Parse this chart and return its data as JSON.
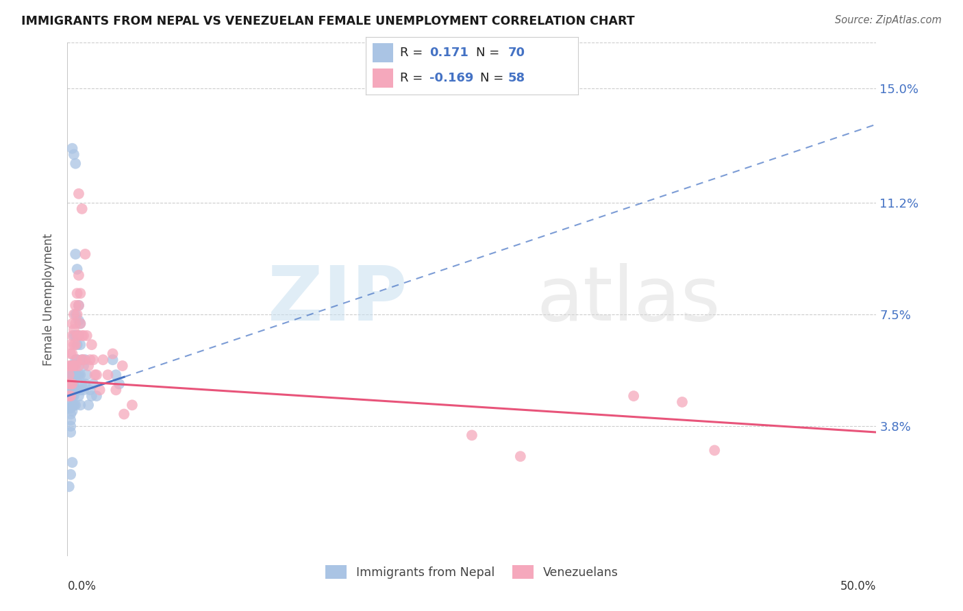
{
  "title": "IMMIGRANTS FROM NEPAL VS VENEZUELAN FEMALE UNEMPLOYMENT CORRELATION CHART",
  "source": "Source: ZipAtlas.com",
  "ylabel": "Female Unemployment",
  "ytick_labels": [
    "3.8%",
    "7.5%",
    "11.2%",
    "15.0%"
  ],
  "ytick_values": [
    0.038,
    0.075,
    0.112,
    0.15
  ],
  "xlim": [
    0.0,
    0.5
  ],
  "ylim": [
    -0.005,
    0.165
  ],
  "nepal_color": "#aac4e4",
  "venezuela_color": "#f5a8bc",
  "nepal_line_color": "#4472c4",
  "venezuela_line_color": "#e8547a",
  "nepal_line_x": [
    0.0,
    0.5
  ],
  "nepal_line_y": [
    0.048,
    0.138
  ],
  "venezuela_line_x": [
    0.0,
    0.5
  ],
  "venezuela_line_y": [
    0.053,
    0.036
  ],
  "nepal_points": [
    [
      0.001,
      0.05
    ],
    [
      0.001,
      0.048
    ],
    [
      0.001,
      0.046
    ],
    [
      0.001,
      0.044
    ],
    [
      0.002,
      0.055
    ],
    [
      0.002,
      0.052
    ],
    [
      0.002,
      0.05
    ],
    [
      0.002,
      0.048
    ],
    [
      0.002,
      0.044
    ],
    [
      0.002,
      0.042
    ],
    [
      0.002,
      0.04
    ],
    [
      0.002,
      0.038
    ],
    [
      0.002,
      0.036
    ],
    [
      0.003,
      0.058
    ],
    [
      0.003,
      0.055
    ],
    [
      0.003,
      0.052
    ],
    [
      0.003,
      0.05
    ],
    [
      0.003,
      0.048
    ],
    [
      0.003,
      0.045
    ],
    [
      0.003,
      0.043
    ],
    [
      0.004,
      0.068
    ],
    [
      0.004,
      0.058
    ],
    [
      0.004,
      0.055
    ],
    [
      0.004,
      0.052
    ],
    [
      0.004,
      0.048
    ],
    [
      0.004,
      0.045
    ],
    [
      0.005,
      0.075
    ],
    [
      0.005,
      0.068
    ],
    [
      0.005,
      0.06
    ],
    [
      0.005,
      0.055
    ],
    [
      0.005,
      0.05
    ],
    [
      0.005,
      0.045
    ],
    [
      0.006,
      0.065
    ],
    [
      0.006,
      0.06
    ],
    [
      0.006,
      0.055
    ],
    [
      0.006,
      0.05
    ],
    [
      0.007,
      0.073
    ],
    [
      0.007,
      0.068
    ],
    [
      0.007,
      0.055
    ],
    [
      0.007,
      0.048
    ],
    [
      0.008,
      0.065
    ],
    [
      0.008,
      0.055
    ],
    [
      0.008,
      0.05
    ],
    [
      0.008,
      0.045
    ],
    [
      0.009,
      0.06
    ],
    [
      0.009,
      0.052
    ],
    [
      0.01,
      0.058
    ],
    [
      0.01,
      0.05
    ],
    [
      0.011,
      0.06
    ],
    [
      0.011,
      0.052
    ],
    [
      0.012,
      0.055
    ],
    [
      0.013,
      0.045
    ],
    [
      0.014,
      0.05
    ],
    [
      0.015,
      0.048
    ],
    [
      0.016,
      0.052
    ],
    [
      0.018,
      0.048
    ],
    [
      0.003,
      0.13
    ],
    [
      0.004,
      0.128
    ],
    [
      0.005,
      0.125
    ],
    [
      0.005,
      0.095
    ],
    [
      0.006,
      0.09
    ],
    [
      0.007,
      0.078
    ],
    [
      0.008,
      0.072
    ],
    [
      0.002,
      0.022
    ],
    [
      0.003,
      0.026
    ],
    [
      0.001,
      0.018
    ],
    [
      0.028,
      0.06
    ],
    [
      0.03,
      0.055
    ],
    [
      0.032,
      0.052
    ]
  ],
  "venezuela_points": [
    [
      0.001,
      0.058
    ],
    [
      0.001,
      0.055
    ],
    [
      0.001,
      0.052
    ],
    [
      0.001,
      0.048
    ],
    [
      0.002,
      0.065
    ],
    [
      0.002,
      0.062
    ],
    [
      0.002,
      0.058
    ],
    [
      0.002,
      0.052
    ],
    [
      0.002,
      0.048
    ],
    [
      0.003,
      0.072
    ],
    [
      0.003,
      0.068
    ],
    [
      0.003,
      0.062
    ],
    [
      0.003,
      0.058
    ],
    [
      0.003,
      0.052
    ],
    [
      0.004,
      0.075
    ],
    [
      0.004,
      0.07
    ],
    [
      0.004,
      0.065
    ],
    [
      0.004,
      0.058
    ],
    [
      0.005,
      0.078
    ],
    [
      0.005,
      0.072
    ],
    [
      0.005,
      0.065
    ],
    [
      0.005,
      0.058
    ],
    [
      0.006,
      0.082
    ],
    [
      0.006,
      0.075
    ],
    [
      0.006,
      0.068
    ],
    [
      0.006,
      0.06
    ],
    [
      0.007,
      0.088
    ],
    [
      0.007,
      0.078
    ],
    [
      0.007,
      0.068
    ],
    [
      0.007,
      0.058
    ],
    [
      0.008,
      0.082
    ],
    [
      0.008,
      0.072
    ],
    [
      0.009,
      0.068
    ],
    [
      0.009,
      0.06
    ],
    [
      0.01,
      0.068
    ],
    [
      0.01,
      0.06
    ],
    [
      0.011,
      0.095
    ],
    [
      0.012,
      0.068
    ],
    [
      0.013,
      0.058
    ],
    [
      0.014,
      0.06
    ],
    [
      0.015,
      0.065
    ],
    [
      0.016,
      0.06
    ],
    [
      0.017,
      0.055
    ],
    [
      0.018,
      0.055
    ],
    [
      0.02,
      0.05
    ],
    [
      0.022,
      0.06
    ],
    [
      0.025,
      0.055
    ],
    [
      0.028,
      0.062
    ],
    [
      0.03,
      0.05
    ],
    [
      0.034,
      0.058
    ],
    [
      0.035,
      0.042
    ],
    [
      0.04,
      0.045
    ],
    [
      0.007,
      0.115
    ],
    [
      0.009,
      0.11
    ],
    [
      0.35,
      0.048
    ],
    [
      0.38,
      0.046
    ],
    [
      0.4,
      0.03
    ],
    [
      0.25,
      0.035
    ],
    [
      0.28,
      0.028
    ]
  ]
}
